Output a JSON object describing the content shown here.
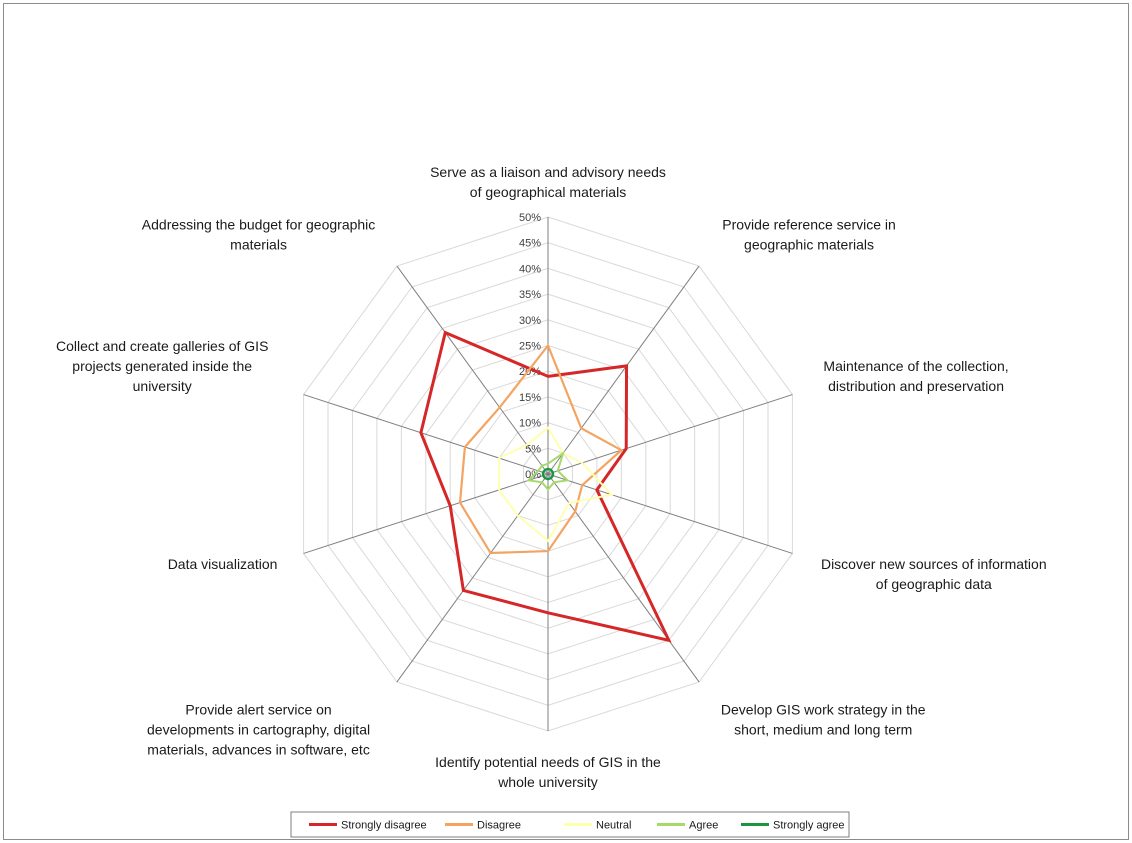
{
  "chart_data": {
    "type": "radar",
    "title": "",
    "categories": [
      [
        "Serve as a liaison and advisory needs",
        "of geographical materials"
      ],
      [
        "Provide reference service in",
        "geographic materials"
      ],
      [
        "Maintenance of the collection,",
        "distribution and preservation"
      ],
      [
        "Discover new sources of information",
        "of geographic data"
      ],
      [
        "Develop GIS work strategy in the",
        "short, medium and long term"
      ],
      [
        "Identify potential needs of GIS in the",
        "whole university"
      ],
      [
        "Provide alert service on",
        "developments in cartography, digital",
        "materials, advances in software, etc"
      ],
      [
        "Data visualization"
      ],
      [
        "Collect and create galleries of GIS",
        "projects generated inside the",
        "university"
      ],
      [
        "Addressing the budget for geographic",
        "materials"
      ]
    ],
    "rlim": [
      0,
      50
    ],
    "ticks": [
      "0%",
      "5%",
      "10%",
      "15%",
      "20%",
      "25%",
      "30%",
      "35%",
      "40%",
      "45%",
      "50%"
    ],
    "grid": true,
    "legend_position": "bottom",
    "series": [
      {
        "name": "Strongly disagree",
        "color": "#d62728",
        "width": 3,
        "values": [
          19,
          26,
          16,
          10,
          40,
          27,
          28,
          20,
          26,
          34
        ]
      },
      {
        "name": "Disagree",
        "color": "#f4a460",
        "width": 2.2,
        "values": [
          25,
          11,
          15,
          7,
          9,
          15,
          19,
          18,
          17,
          16
        ]
      },
      {
        "name": "Neutral",
        "color": "#ffffb0",
        "width": 2,
        "values": [
          9,
          5,
          7,
          13,
          7,
          13,
          10,
          10,
          10,
          7
        ]
      },
      {
        "name": "Agree",
        "color": "#a6d96a",
        "width": 2,
        "values": [
          2,
          5,
          2,
          4,
          2,
          3,
          2,
          4,
          2,
          2
        ]
      },
      {
        "name": "Strongly agree",
        "color": "#1a9641",
        "width": 2.4,
        "values": [
          1,
          1,
          1,
          1,
          1,
          1,
          1,
          1,
          1,
          1
        ]
      }
    ]
  }
}
